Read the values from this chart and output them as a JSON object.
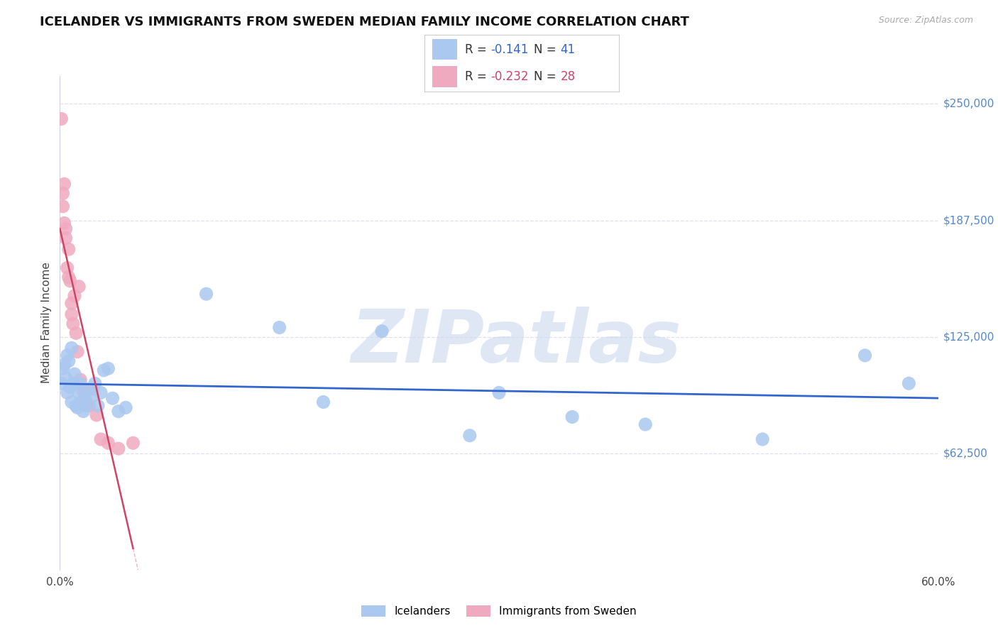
{
  "title": "ICELANDER VS IMMIGRANTS FROM SWEDEN MEDIAN FAMILY INCOME CORRELATION CHART",
  "source": "Source: ZipAtlas.com",
  "ylabel": "Median Family Income",
  "xlim": [
    0.0,
    0.6
  ],
  "ylim": [
    0,
    265000
  ],
  "ytick_vals": [
    62500,
    125000,
    187500,
    250000
  ],
  "ytick_labels": [
    "$62,500",
    "$125,000",
    "$187,500",
    "$250,000"
  ],
  "xtick_positions": [
    0.0,
    0.1,
    0.2,
    0.3,
    0.4,
    0.5,
    0.6
  ],
  "xtick_labels": [
    "0.0%",
    "",
    "",
    "",
    "",
    "",
    "60.0%"
  ],
  "blue_x": [
    0.001,
    0.002,
    0.003,
    0.004,
    0.005,
    0.005,
    0.006,
    0.007,
    0.008,
    0.008,
    0.009,
    0.01,
    0.011,
    0.012,
    0.013,
    0.014,
    0.015,
    0.016,
    0.017,
    0.018,
    0.02,
    0.022,
    0.024,
    0.026,
    0.028,
    0.03,
    0.033,
    0.036,
    0.04,
    0.045,
    0.1,
    0.15,
    0.18,
    0.22,
    0.28,
    0.3,
    0.35,
    0.4,
    0.48,
    0.55,
    0.58
  ],
  "blue_y": [
    100000,
    108000,
    110000,
    103000,
    95000,
    115000,
    112000,
    98000,
    90000,
    119000,
    100000,
    105000,
    88000,
    87000,
    95000,
    100000,
    90000,
    85000,
    92000,
    88000,
    97000,
    93000,
    100000,
    88000,
    95000,
    107000,
    108000,
    92000,
    85000,
    87000,
    148000,
    130000,
    90000,
    128000,
    72000,
    95000,
    82000,
    78000,
    70000,
    115000,
    100000
  ],
  "pink_x": [
    0.001,
    0.002,
    0.002,
    0.003,
    0.003,
    0.004,
    0.004,
    0.005,
    0.006,
    0.006,
    0.007,
    0.008,
    0.008,
    0.009,
    0.01,
    0.011,
    0.012,
    0.013,
    0.014,
    0.016,
    0.018,
    0.02,
    0.022,
    0.025,
    0.028,
    0.033,
    0.04,
    0.05
  ],
  "pink_y": [
    242000,
    202000,
    195000,
    207000,
    186000,
    183000,
    178000,
    162000,
    172000,
    157000,
    155000,
    143000,
    137000,
    132000,
    147000,
    127000,
    117000,
    152000,
    102000,
    96000,
    90000,
    88000,
    97000,
    83000,
    70000,
    68000,
    65000,
    68000
  ],
  "blue_color": "#aac8f0",
  "pink_color": "#f0aac0",
  "blue_line_color": "#3366cc",
  "pink_line_color": "#cc4466",
  "blue_r": "-0.141",
  "blue_n": "41",
  "pink_r": "-0.232",
  "pink_n": "28",
  "background_color": "#ffffff",
  "grid_color": "#e0e0ed",
  "watermark_text": "ZIPatlas",
  "watermark_color": "#c5d5ed"
}
